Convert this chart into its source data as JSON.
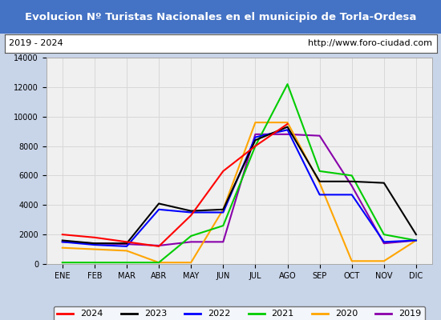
{
  "title": "Evolucion Nº Turistas Nacionales en el municipio de Torla-Ordesa",
  "subtitle_left": "2019 - 2024",
  "subtitle_right": "http://www.foro-ciudad.com",
  "title_bg_color": "#4472c4",
  "title_text_color": "#ffffff",
  "months": [
    "ENE",
    "FEB",
    "MAR",
    "ABR",
    "MAY",
    "JUN",
    "JUL",
    "AGO",
    "SEP",
    "OCT",
    "NOV",
    "DIC"
  ],
  "ylim": [
    0,
    14000
  ],
  "yticks": [
    0,
    2000,
    4000,
    6000,
    8000,
    10000,
    12000,
    14000
  ],
  "series": {
    "2024": {
      "color": "#ff0000",
      "data": [
        2000,
        1800,
        1500,
        1200,
        3300,
        6300,
        8000,
        9500,
        null,
        null,
        null,
        null
      ]
    },
    "2023": {
      "color": "#000000",
      "data": [
        1600,
        1400,
        1400,
        4100,
        3600,
        3700,
        8400,
        9300,
        5600,
        5600,
        5500,
        2000
      ]
    },
    "2022": {
      "color": "#0000ff",
      "data": [
        1500,
        1300,
        1200,
        3700,
        3500,
        3500,
        8600,
        9100,
        4700,
        4700,
        1500,
        1600
      ]
    },
    "2021": {
      "color": "#00cc00",
      "data": [
        100,
        100,
        100,
        100,
        1900,
        2600,
        8000,
        12200,
        6300,
        6000,
        2000,
        1600
      ]
    },
    "2020": {
      "color": "#ffa500",
      "data": [
        1100,
        1000,
        900,
        100,
        100,
        3700,
        9600,
        9600,
        5500,
        200,
        200,
        1600
      ]
    },
    "2019": {
      "color": "#8800aa",
      "data": [
        1500,
        1400,
        1350,
        1250,
        1500,
        1500,
        8800,
        8800,
        8700,
        5300,
        1400,
        1600
      ]
    }
  },
  "legend_order": [
    "2024",
    "2023",
    "2022",
    "2021",
    "2020",
    "2019"
  ],
  "grid_color": "#d8d8d8",
  "plot_bg": "#f0f0f0",
  "outer_bg": "#c8d4e8",
  "inner_frame_bg": "#e8e8e8"
}
